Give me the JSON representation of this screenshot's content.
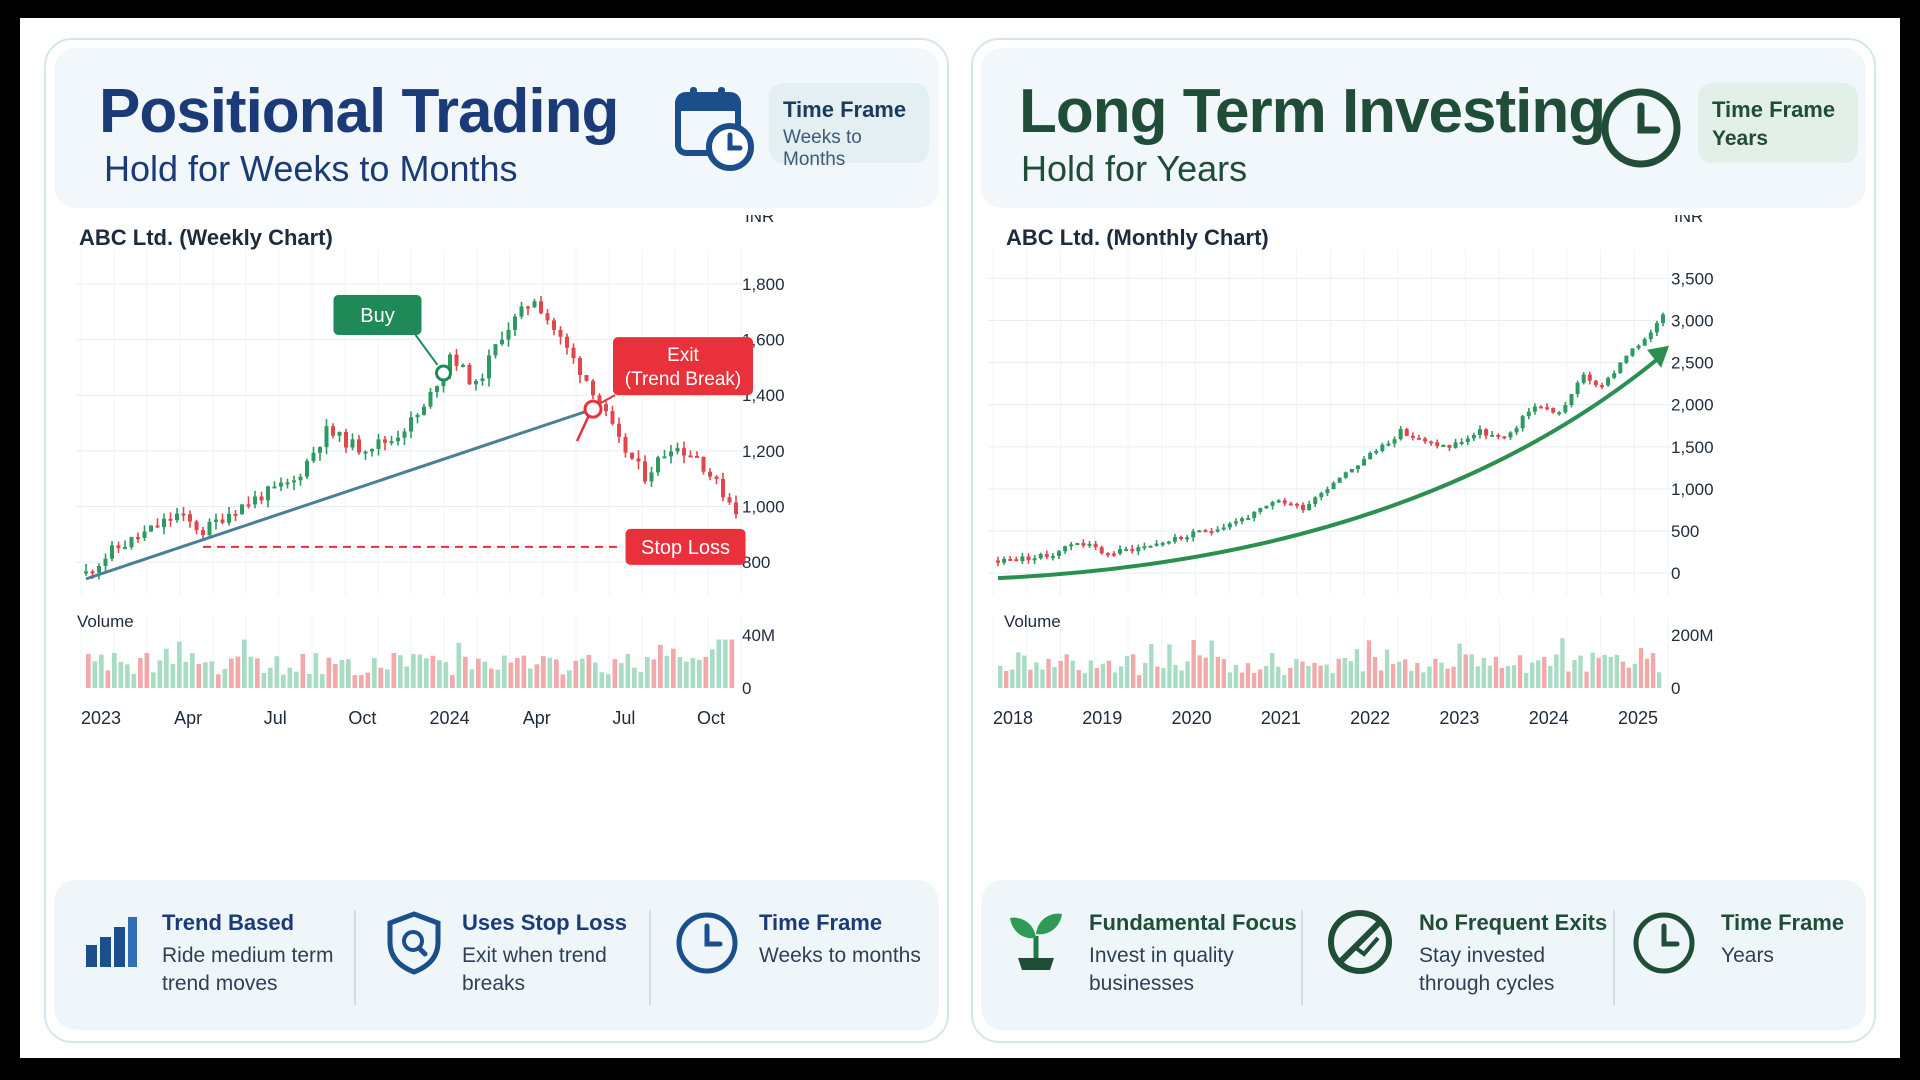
{
  "left": {
    "title": "Positional Trading",
    "subtitle": "Hold for Weeks to Months",
    "timeframe": {
      "label": "Time Frame",
      "value": "Weeks to Months",
      "icon": "calendar-clock-icon"
    },
    "features": [
      {
        "icon": "bar-chart-icon",
        "title": "Trend Based",
        "desc": "Ride medium term trend moves"
      },
      {
        "icon": "shield-search-icon",
        "title": "Uses Stop Loss",
        "desc": "Exit when trend breaks"
      },
      {
        "icon": "clock-icon",
        "title": "Time Frame",
        "desc": "Weeks to months"
      }
    ]
  },
  "right": {
    "title": "Long Term Investing",
    "subtitle": "Hold for Years",
    "timeframe": {
      "label": "Time Frame",
      "value": "Years",
      "icon": "clock-icon"
    },
    "features": [
      {
        "icon": "sprout-icon",
        "title": "Fundamental Focus",
        "desc": "Invest in quality businesses"
      },
      {
        "icon": "no-exit-icon",
        "title": "No Frequent Exits",
        "desc": "Stay invested through cycles"
      },
      {
        "icon": "clock-icon",
        "title": "Time Frame",
        "desc": "Years"
      }
    ]
  },
  "colors": {
    "navy": "#1b3a78",
    "dark_green": "#1f4d37",
    "up": "#2e9a62",
    "down": "#e0474c",
    "buy": "#1e8a57",
    "exit": "#e8313a",
    "trendline": "#4a7f98",
    "vol_up": "#a9dcc4",
    "vol_down": "#f2a9a9"
  },
  "chart_data": [
    {
      "type": "candlestick",
      "title": "ABC Ltd. (Weekly Chart)",
      "unit": "INR",
      "ylim": [
        700,
        1850
      ],
      "y_ticks": [
        800,
        1000,
        1200,
        1400,
        1600,
        1800
      ],
      "x_labels": [
        "2023",
        "Apr",
        "Jul",
        "Oct",
        "2024",
        "Apr",
        "Jul",
        "Oct"
      ],
      "close_path": [
        [
          0,
          760
        ],
        [
          4,
          840
        ],
        [
          8,
          890
        ],
        [
          14,
          970
        ],
        [
          18,
          910
        ],
        [
          22,
          980
        ],
        [
          27,
          1040
        ],
        [
          32,
          1090
        ],
        [
          37,
          1270
        ],
        [
          42,
          1210
        ],
        [
          47,
          1240
        ],
        [
          52,
          1350
        ],
        [
          56,
          1550
        ],
        [
          60,
          1430
        ],
        [
          64,
          1620
        ],
        [
          69,
          1750
        ],
        [
          73,
          1600
        ],
        [
          78,
          1420
        ],
        [
          82,
          1230
        ],
        [
          86,
          1110
        ],
        [
          90,
          1220
        ],
        [
          94,
          1180
        ],
        [
          97,
          1080
        ],
        [
          100,
          990
        ]
      ],
      "annotations": {
        "buy": {
          "label": "Buy",
          "x": 55,
          "price": 1480
        },
        "exit": {
          "label": "Exit\n(Trend Break)",
          "x": 78,
          "price": 1350
        },
        "stop_loss": {
          "label": "Stop Loss",
          "price": 855
        }
      },
      "trendline": [
        [
          0,
          740
        ],
        [
          78,
          1350
        ]
      ],
      "volume": {
        "label": "Volume",
        "ticks": [
          "0",
          "40M"
        ],
        "max": 40,
        "bars": 100
      },
      "grid": true
    },
    {
      "type": "candlestick",
      "title": "ABC Ltd. (Monthly Chart)",
      "unit": "INR",
      "ylim": [
        -200,
        3600
      ],
      "y_ticks": [
        0,
        500,
        1000,
        1500,
        2000,
        2500,
        3000,
        3500
      ],
      "x_labels": [
        "2018",
        "2019",
        "2020",
        "2021",
        "2022",
        "2023",
        "2024",
        "2025"
      ],
      "close_path": [
        [
          0,
          150
        ],
        [
          8,
          200
        ],
        [
          13,
          380
        ],
        [
          18,
          230
        ],
        [
          24,
          320
        ],
        [
          30,
          420
        ],
        [
          36,
          540
        ],
        [
          42,
          700
        ],
        [
          46,
          860
        ],
        [
          50,
          780
        ],
        [
          56,
          1150
        ],
        [
          60,
          1350
        ],
        [
          66,
          1680
        ],
        [
          70,
          1550
        ],
        [
          74,
          1500
        ],
        [
          79,
          1680
        ],
        [
          83,
          1580
        ],
        [
          88,
          2000
        ],
        [
          92,
          1900
        ],
        [
          96,
          2350
        ],
        [
          99,
          2200
        ],
        [
          103,
          2600
        ],
        [
          106,
          2750
        ],
        [
          109,
          3100
        ]
      ],
      "trend_arrow": [
        [
          0,
          0
        ],
        [
          110,
          2700
        ]
      ],
      "volume": {
        "label": "Volume",
        "ticks": [
          "0",
          "200M"
        ],
        "max": 200,
        "bars": 110
      },
      "grid": true
    }
  ]
}
